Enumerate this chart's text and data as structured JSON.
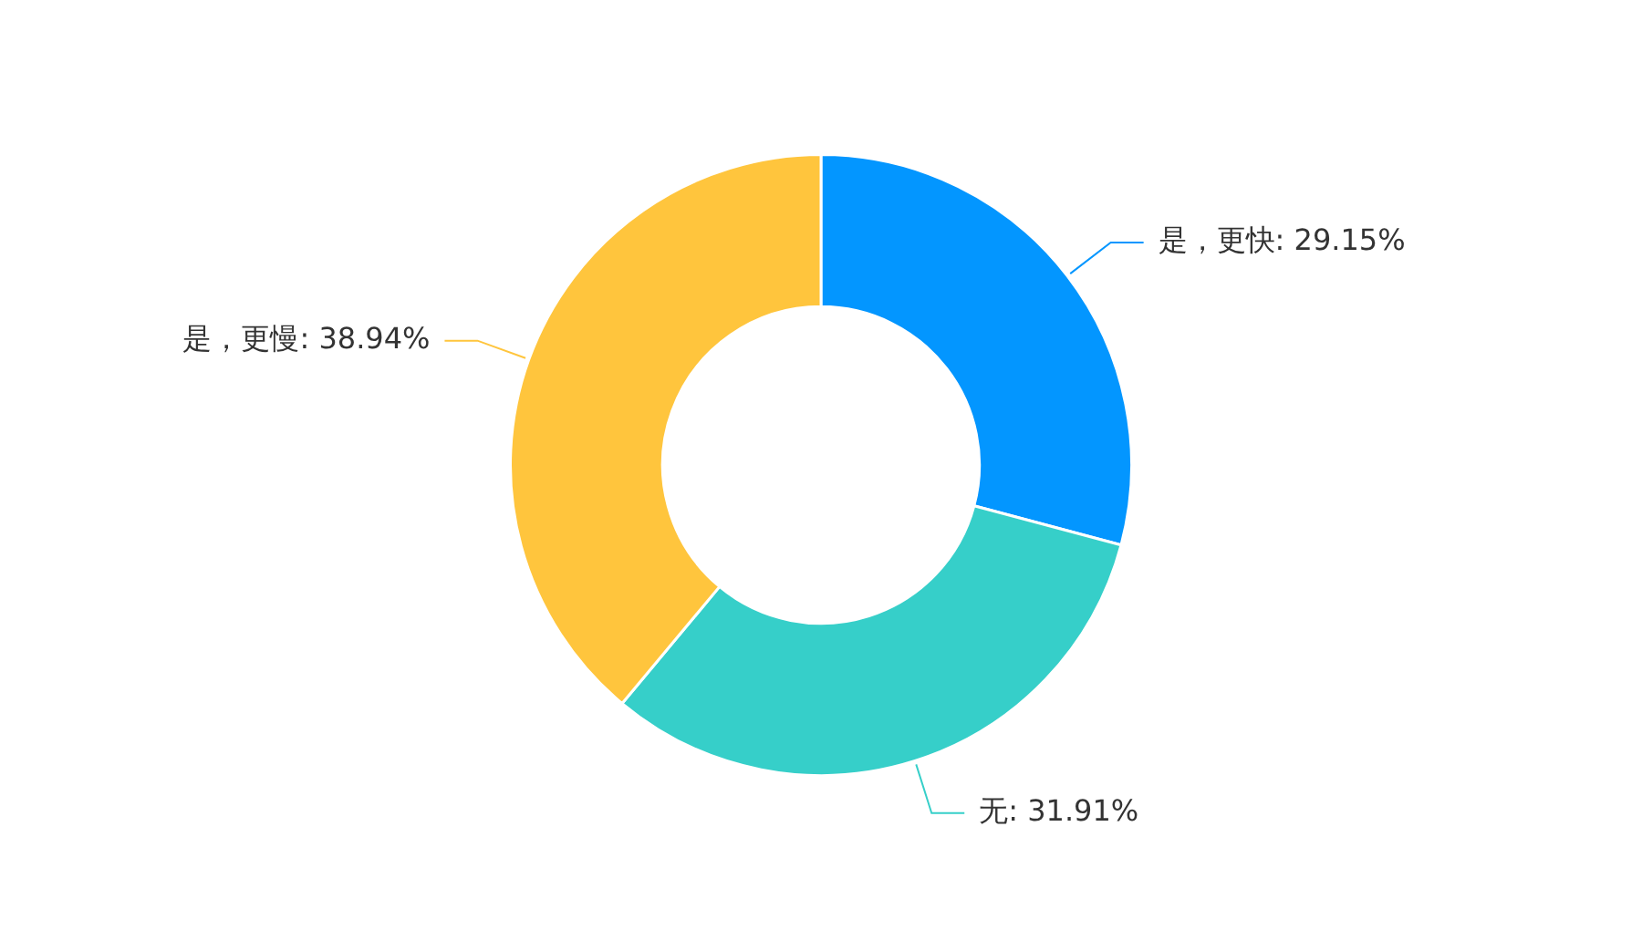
{
  "chart_data": {
    "type": "donut",
    "categories": [
      "是，更快",
      "无",
      "是，更慢"
    ],
    "values": [
      29.15,
      31.91,
      38.94
    ],
    "colors": [
      "#0396ff",
      "#36cfc9",
      "#ffc53d"
    ],
    "value_labels": [
      "29.15%",
      "31.91%",
      "38.94%"
    ],
    "legend": false
  }
}
